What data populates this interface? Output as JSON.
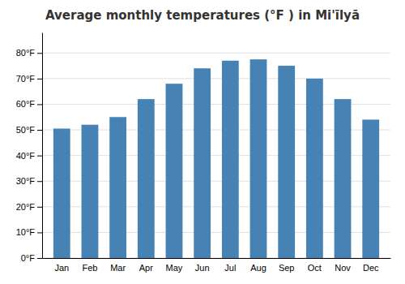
{
  "chart_data": {
    "type": "bar",
    "title": "Average monthly temperatures (°F ) in Mi'īlyā",
    "categories": [
      "Jan",
      "Feb",
      "Mar",
      "Apr",
      "May",
      "Jun",
      "Jul",
      "Aug",
      "Sep",
      "Oct",
      "Nov",
      "Dec"
    ],
    "values": [
      50.5,
      52.0,
      55.0,
      62.0,
      68.0,
      74.0,
      77.0,
      77.5,
      75.0,
      70.0,
      62.0,
      54.0
    ],
    "ylim": [
      0,
      88
    ],
    "yticks": [
      {
        "value": 0,
        "label": "0°F"
      },
      {
        "value": 10,
        "label": "10°F"
      },
      {
        "value": 20,
        "label": "20°F"
      },
      {
        "value": 30,
        "label": "30°F"
      },
      {
        "value": 40,
        "label": "40°F"
      },
      {
        "value": 50,
        "label": "50°F"
      },
      {
        "value": 60,
        "label": "60°F"
      },
      {
        "value": 70,
        "label": "70°F"
      },
      {
        "value": 80,
        "label": "80°F"
      }
    ],
    "grid": true
  }
}
